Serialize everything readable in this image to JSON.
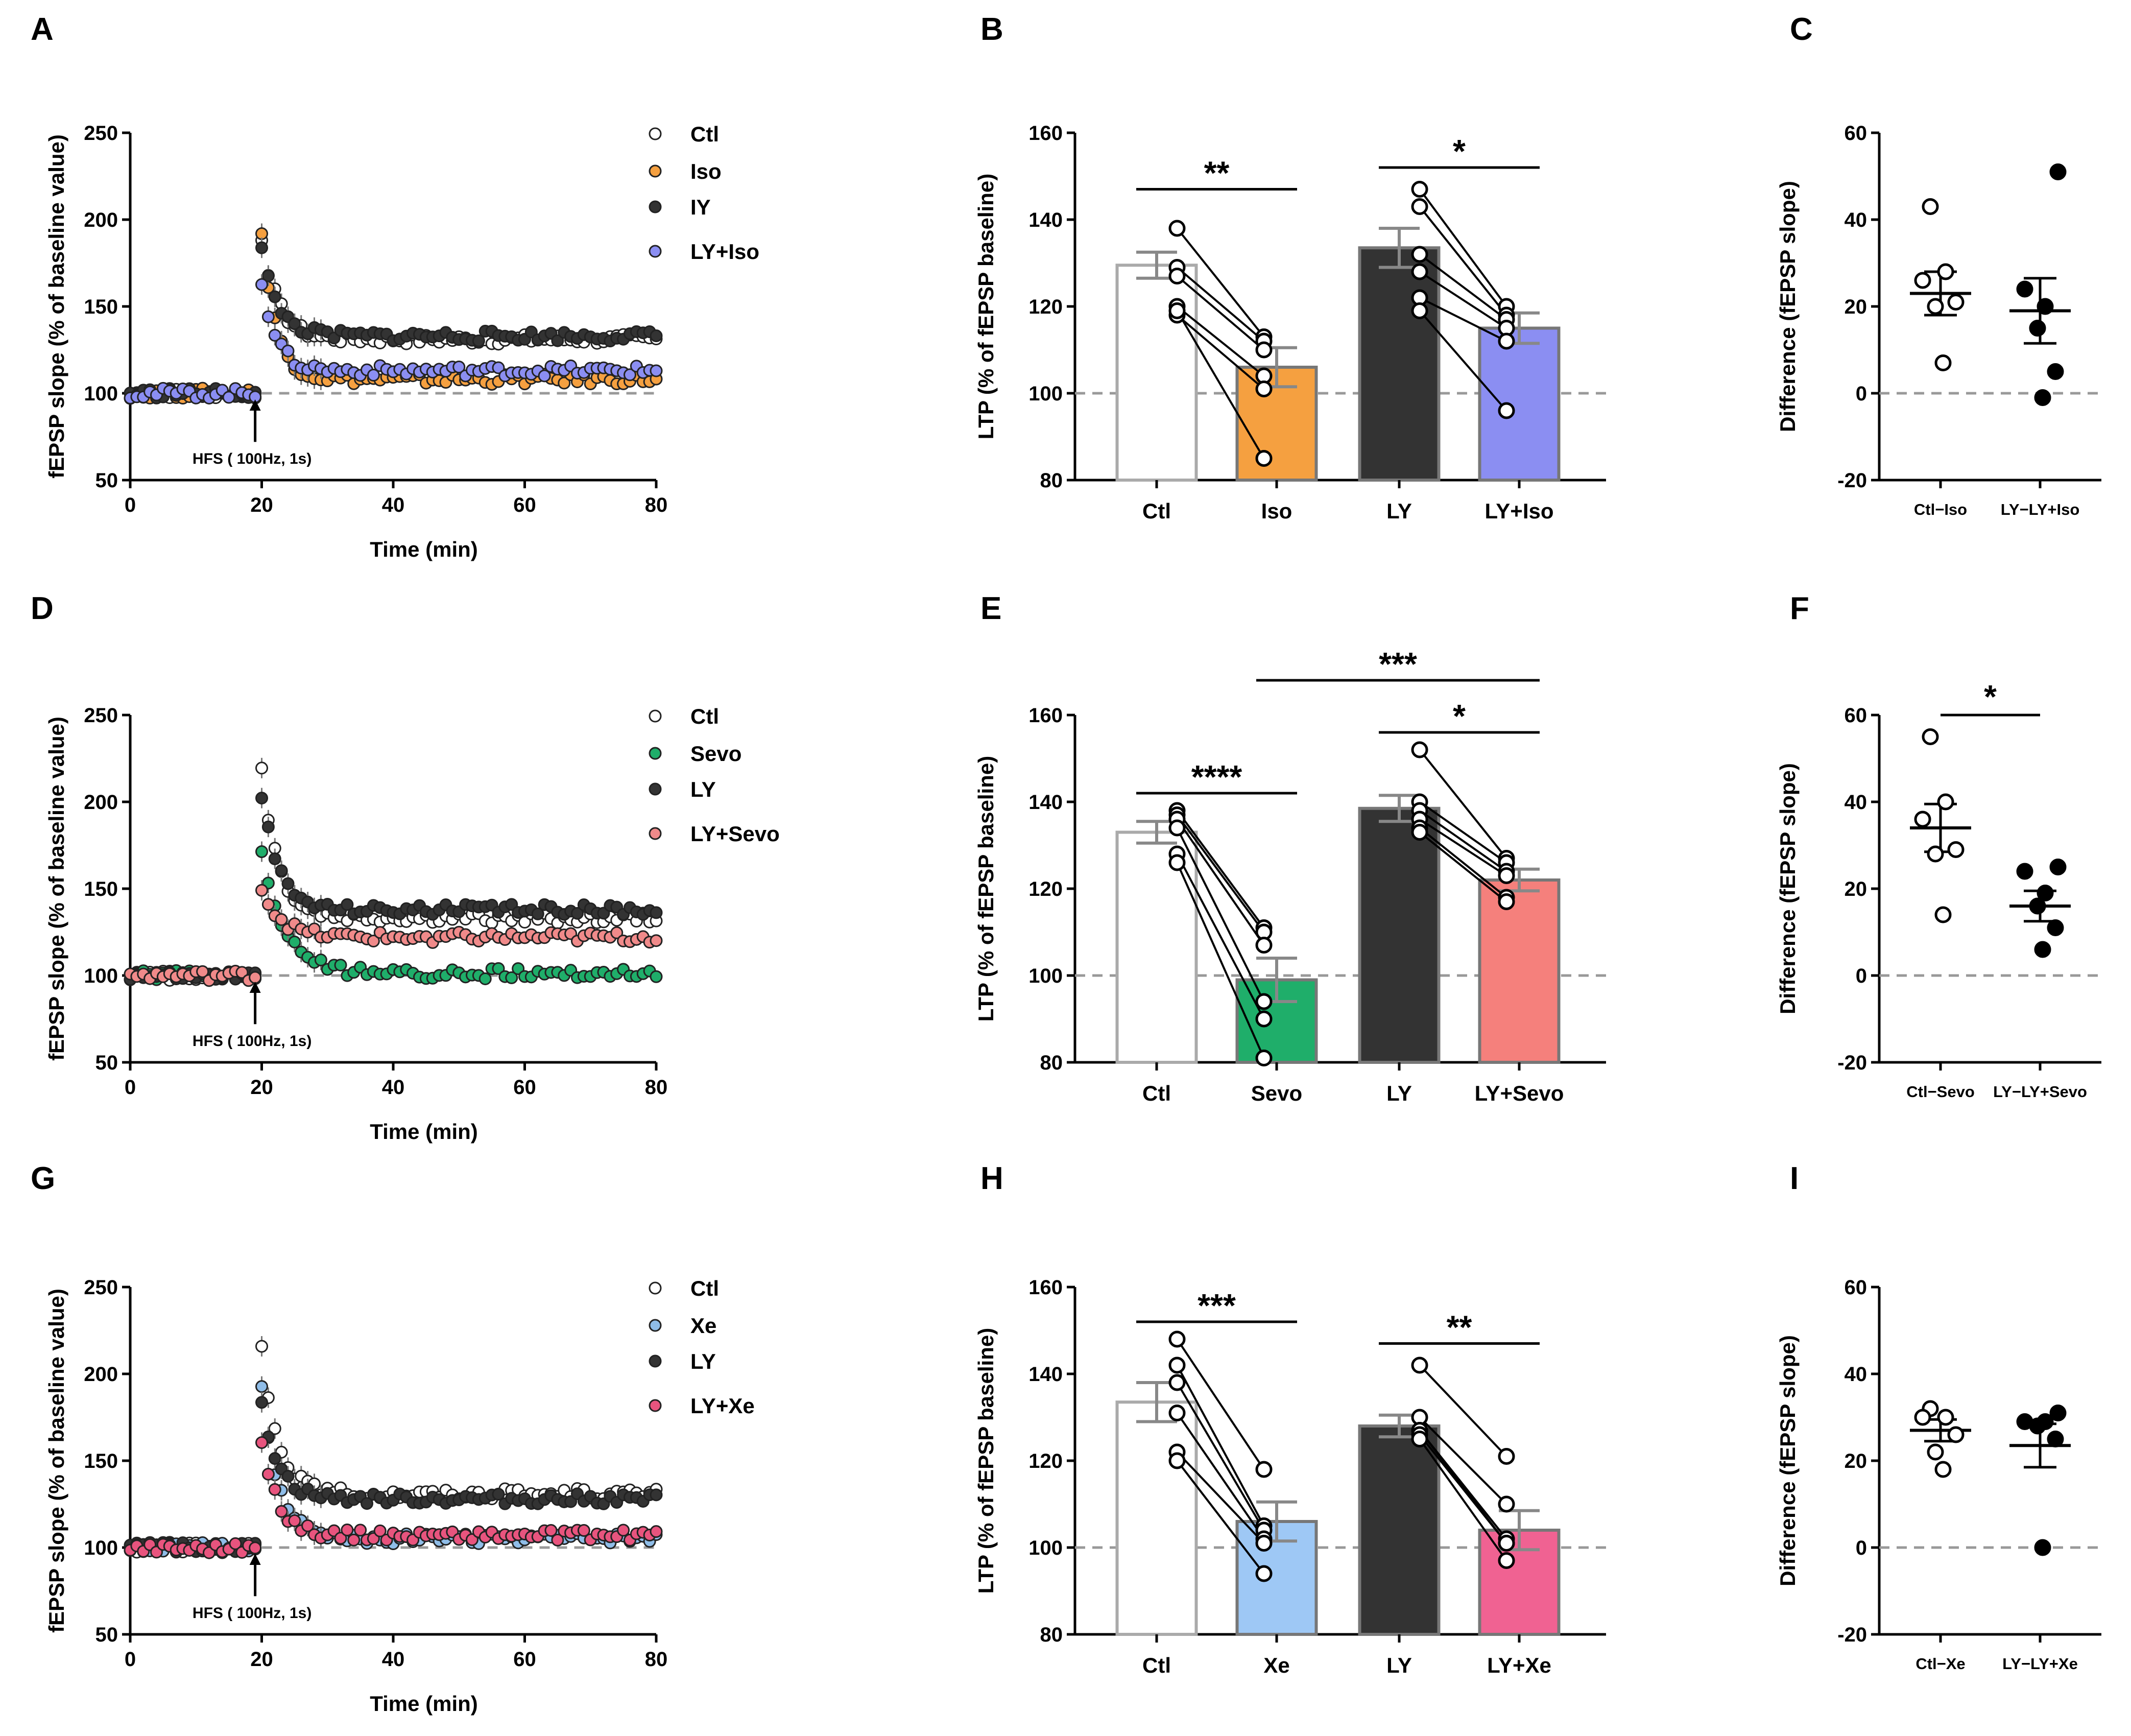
{
  "chart_data": [
    {
      "panel": "A",
      "type": "scatter",
      "xlabel": "Time (min)",
      "ylabel": "fEPSP slope (% of baseline value)",
      "xlim": [
        0,
        80
      ],
      "ylim": [
        50,
        250
      ],
      "xticks": [
        "0",
        "20",
        "40",
        "60",
        "80"
      ],
      "yticks": [
        "50",
        "100",
        "150",
        "200",
        "250"
      ],
      "baseline": 100,
      "annotation": "HFS ( 100Hz, 1s)",
      "annotation_x": 19,
      "legend": [
        "Ctl",
        "Iso",
        "IY",
        "LY+Iso"
      ],
      "series": [
        {
          "name": "Ctl",
          "color": "#ffffff",
          "peak": 190,
          "plateau": 131,
          "tau": 2.5
        },
        {
          "name": "Iso",
          "color": "#f5a040",
          "peak": 192,
          "plateau": 108,
          "tau": 2.2
        },
        {
          "name": "IY",
          "color": "#333333",
          "peak": 182,
          "plateau": 133,
          "tau": 2.5
        },
        {
          "name": "LY+Iso",
          "color": "#8b8ef2",
          "peak": 165,
          "plateau": 113,
          "tau": 2.2
        }
      ]
    },
    {
      "panel": "B",
      "type": "bar",
      "ylabel": "LTP (% of fEPSP baseline)",
      "ylim": [
        80,
        160
      ],
      "yticks": [
        "80",
        "100",
        "120",
        "140",
        "160"
      ],
      "baseline": 100,
      "categories": [
        "Ctl",
        "Iso",
        "LY",
        "LY+Iso"
      ],
      "values": [
        129.5,
        106,
        133.5,
        115
      ],
      "errors": [
        3,
        4.5,
        4.5,
        3.5
      ],
      "colors": [
        "#ffffff",
        "#f5a040",
        "#333333",
        "#8b8ef2"
      ],
      "points": [
        [
          138,
          129,
          127,
          120,
          118,
          119
        ],
        [
          113,
          112,
          110,
          104,
          101,
          85
        ],
        [
          147,
          143,
          132,
          128,
          122,
          119
        ],
        [
          120,
          118,
          117,
          115,
          112,
          96
        ]
      ],
      "significance": [
        {
          "from": 0,
          "to": 1,
          "label": "**",
          "y": 147
        },
        {
          "from": 2,
          "to": 3,
          "label": "*",
          "y": 152
        }
      ]
    },
    {
      "panel": "C",
      "type": "scatter",
      "ylabel": "Difference (fEPSP slope)",
      "ylim": [
        -20,
        60
      ],
      "yticks": [
        "-20",
        "0",
        "20",
        "40",
        "60"
      ],
      "baseline": 0,
      "categories": [
        "Ctl−Iso",
        "LY−LY+Iso"
      ],
      "means": [
        23,
        19
      ],
      "sems": [
        5,
        7.5
      ],
      "fill": [
        "#ffffff",
        "#000000"
      ],
      "points": [
        [
          43,
          28,
          26,
          21,
          20,
          7
        ],
        [
          51,
          24,
          20,
          15,
          5,
          -1
        ]
      ],
      "significance": []
    },
    {
      "panel": "D",
      "type": "scatter",
      "xlabel": "Time (min)",
      "ylabel": "fEPSP slope (% of baseline value)",
      "xlim": [
        0,
        80
      ],
      "ylim": [
        50,
        250
      ],
      "xticks": [
        "0",
        "20",
        "40",
        "60",
        "80"
      ],
      "yticks": [
        "50",
        "100",
        "150",
        "200",
        "250"
      ],
      "baseline": 100,
      "annotation": "HFS ( 100Hz, 1s)",
      "annotation_x": 19,
      "legend": [
        "Ctl",
        "Sevo",
        "LY",
        "LY+Sevo"
      ],
      "series": [
        {
          "name": "Ctl",
          "color": "#ffffff",
          "peak": 220,
          "plateau": 133,
          "tau": 2.5
        },
        {
          "name": "Sevo",
          "color": "#1fae6a",
          "peak": 170,
          "plateau": 101,
          "tau": 3.5
        },
        {
          "name": "LY",
          "color": "#333333",
          "peak": 205,
          "plateau": 138,
          "tau": 2.5
        },
        {
          "name": "LY+Sevo",
          "color": "#f08a8a",
          "peak": 150,
          "plateau": 122,
          "tau": 3
        }
      ]
    },
    {
      "panel": "E",
      "type": "bar",
      "ylabel": "LTP (% of fEPSP baseline)",
      "ylim": [
        80,
        160
      ],
      "yticks": [
        "80",
        "100",
        "120",
        "140",
        "160"
      ],
      "baseline": 100,
      "categories": [
        "Ctl",
        "Sevo",
        "LY",
        "LY+Sevo"
      ],
      "values": [
        133,
        99,
        138.5,
        122
      ],
      "errors": [
        2.5,
        5,
        3,
        2.5
      ],
      "colors": [
        "#ffffff",
        "#1fae6a",
        "#333333",
        "#f5807c"
      ],
      "points": [
        [
          138,
          137,
          136,
          134,
          128,
          126
        ],
        [
          111,
          110,
          107,
          94,
          90,
          81
        ],
        [
          152,
          140,
          138,
          136,
          134,
          133
        ],
        [
          127,
          126,
          124,
          123,
          118,
          117
        ]
      ],
      "significance": [
        {
          "from": 0,
          "to": 1,
          "label": "****",
          "y": 142
        },
        {
          "from": 2,
          "to": 3,
          "label": "*",
          "y": 156
        },
        {
          "from": 1,
          "to": 3,
          "label": "***",
          "y": 168
        }
      ]
    },
    {
      "panel": "F",
      "type": "scatter",
      "ylabel": "Difference (fEPSP slope)",
      "ylim": [
        -20,
        60
      ],
      "yticks": [
        "-20",
        "0",
        "20",
        "40",
        "60"
      ],
      "baseline": 0,
      "categories": [
        "Ctl−Sevo",
        "LY−LY+Sevo"
      ],
      "means": [
        34,
        16
      ],
      "sems": [
        5.5,
        3.5
      ],
      "fill": [
        "#ffffff",
        "#000000"
      ],
      "points": [
        [
          55,
          40,
          36,
          29,
          28,
          14
        ],
        [
          25,
          24,
          19,
          16,
          11,
          6
        ]
      ],
      "significance": [
        {
          "from": 0,
          "to": 1,
          "label": "*",
          "y": 60
        }
      ]
    },
    {
      "panel": "G",
      "type": "scatter",
      "xlabel": "Time (min)",
      "ylabel": "fEPSP slope (% of baseline value)",
      "xlim": [
        0,
        80
      ],
      "ylim": [
        50,
        250
      ],
      "xticks": [
        "0",
        "20",
        "40",
        "60",
        "80"
      ],
      "yticks": [
        "50",
        "100",
        "150",
        "200",
        "250"
      ],
      "baseline": 100,
      "annotation": "HFS ( 100Hz, 1s)",
      "annotation_x": 19,
      "legend": [
        "Ctl",
        "Xe",
        "LY",
        "LY+Xe"
      ],
      "series": [
        {
          "name": "Ctl",
          "color": "#ffffff",
          "peak": 215,
          "plateau": 131,
          "tau": 2.5
        },
        {
          "name": "Xe",
          "color": "#8fbde8",
          "peak": 190,
          "plateau": 105,
          "tau": 2.5
        },
        {
          "name": "LY",
          "color": "#333333",
          "peak": 185,
          "plateau": 128,
          "tau": 2.5
        },
        {
          "name": "LY+Xe",
          "color": "#e8547e",
          "peak": 160,
          "plateau": 107,
          "tau": 2.5
        }
      ]
    },
    {
      "panel": "H",
      "type": "bar",
      "ylabel": "LTP (% of fEPSP baseline)",
      "ylim": [
        80,
        160
      ],
      "yticks": [
        "80",
        "100",
        "120",
        "140",
        "160"
      ],
      "baseline": 100,
      "categories": [
        "Ctl",
        "Xe",
        "LY",
        "LY+Xe"
      ],
      "values": [
        133.5,
        106,
        128,
        104
      ],
      "errors": [
        4.5,
        4.5,
        2.5,
        4.5
      ],
      "colors": [
        "#ffffff",
        "#9ec8f5",
        "#333333",
        "#f06292"
      ],
      "points": [
        [
          148,
          142,
          138,
          131,
          122,
          120
        ],
        [
          118,
          105,
          104,
          102,
          101,
          94
        ],
        [
          142,
          130,
          127,
          127,
          126,
          125
        ],
        [
          121,
          110,
          102,
          101,
          101,
          97
        ]
      ],
      "significance": [
        {
          "from": 0,
          "to": 1,
          "label": "***",
          "y": 152
        },
        {
          "from": 2,
          "to": 3,
          "label": "**",
          "y": 147
        }
      ]
    },
    {
      "panel": "I",
      "type": "scatter",
      "ylabel": "Difference (fEPSP slope)",
      "ylim": [
        -20,
        60
      ],
      "yticks": [
        "-20",
        "0",
        "20",
        "40",
        "60"
      ],
      "baseline": 0,
      "categories": [
        "Ctl−Xe",
        "LY−LY+Xe"
      ],
      "means": [
        27,
        23.5
      ],
      "sems": [
        2.5,
        5
      ],
      "fill": [
        "#ffffff",
        "#000000"
      ],
      "points": [
        [
          32,
          30,
          30,
          26,
          22,
          18
        ],
        [
          31,
          29,
          29,
          28,
          25,
          0
        ]
      ],
      "significance": []
    }
  ]
}
